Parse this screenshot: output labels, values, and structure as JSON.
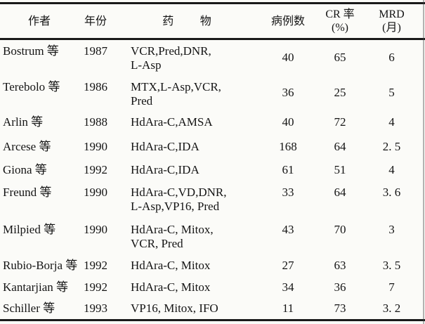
{
  "table": {
    "header": {
      "author": "作者",
      "year": "年份",
      "drugs": "药 物",
      "cases": "病例数",
      "cr_line1": "CR 率",
      "cr_line2": "(%)",
      "mrd_line1": "MRD",
      "mrd_line2": "(月)"
    },
    "rows": [
      {
        "author": "Bostrum 等",
        "year": "1987",
        "drugs": [
          "VCR,Pred,DNR,",
          "L-Asp"
        ],
        "cases": "40",
        "cr": "65",
        "mrd": "6"
      },
      {
        "author": "Terebolo 等",
        "year": "1986",
        "drugs": [
          "MTX,L-Asp,VCR,",
          "Pred"
        ],
        "cases": "36",
        "cr": "25",
        "mrd": "5"
      },
      {
        "author": "Arlin 等",
        "year": "1988",
        "drugs": [
          "HdAra-C,AMSA"
        ],
        "cases": "40",
        "cr": "72",
        "mrd": "4"
      },
      {
        "author": "Arcese 等",
        "year": "1990",
        "drugs": [
          "HdAra-C,IDA"
        ],
        "cases": "168",
        "cr": "64",
        "mrd": "2. 5"
      },
      {
        "author": "Giona 等",
        "year": "1992",
        "drugs": [
          "HdAra-C,IDA"
        ],
        "cases": "61",
        "cr": "51",
        "mrd": "4"
      },
      {
        "author": "Freund 等",
        "year": "1990",
        "drugs": [
          "HdAra-C,VD,DNR,",
          "L-Asp,VP16, Pred"
        ],
        "cases": "33",
        "cr": "64",
        "mrd": "3. 6"
      },
      {
        "author": "Milpied 等",
        "year": "1990",
        "drugs": [
          "HdAra-C, Mitox,",
          "VCR, Pred"
        ],
        "cases": "43",
        "cr": "70",
        "mrd": "3"
      },
      {
        "author": "Rubio-Borja 等",
        "year": "1992",
        "drugs": [
          "HdAra-C, Mitox"
        ],
        "cases": "27",
        "cr": "63",
        "mrd": "3. 5"
      },
      {
        "author": "Kantarjian 等",
        "year": "1992",
        "drugs": [
          "HdAra-C, Mitox"
        ],
        "cases": "34",
        "cr": "36",
        "mrd": "7"
      },
      {
        "author": "Schiller 等",
        "year": "1993",
        "drugs": [
          "VP16, Mitox, IFO"
        ],
        "cases": "11",
        "cr": "73",
        "mrd": "3. 2"
      }
    ]
  }
}
